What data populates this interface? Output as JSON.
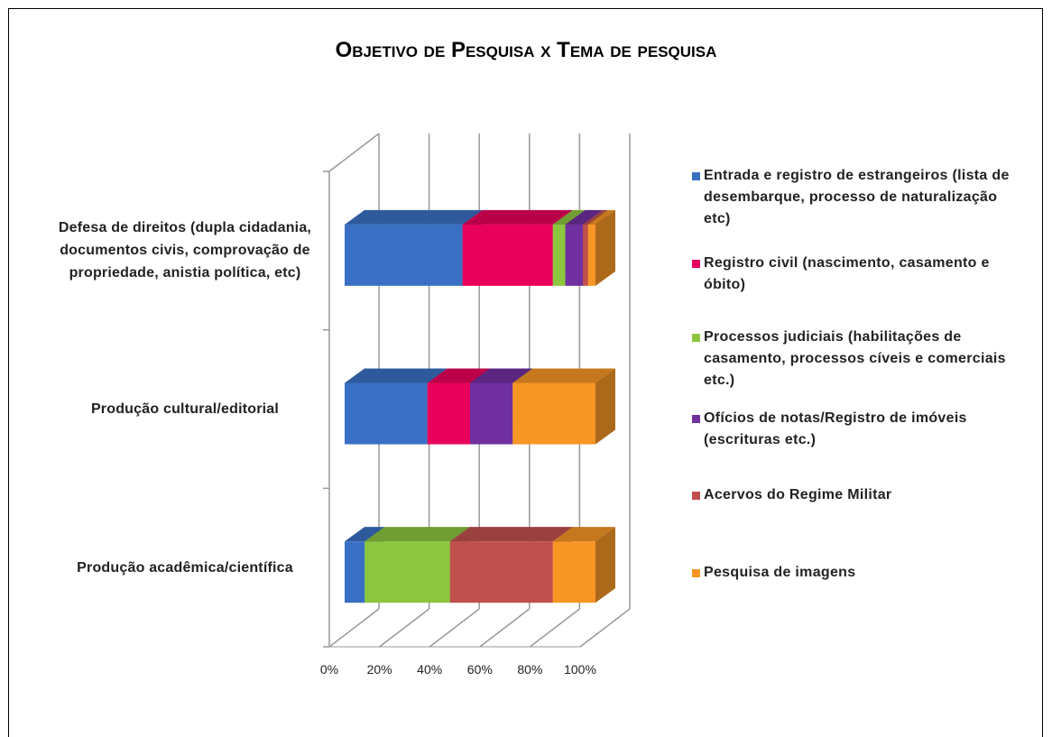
{
  "chart_data": {
    "type": "bar3d_stacked_horizontal",
    "title": "Objetivo de Pesquisa x Tema de pesquisa",
    "categories": [
      "Defesa de direitos (dupla cidadania, documentos civis, comprovação de propriedade, anistia política, etc)",
      "Produção cultural/editorial",
      "Produção acadêmica/científica"
    ],
    "series": [
      {
        "name": "Entrada e registro de estrangeiros (lista de desembarque, processo de naturalização etc)",
        "color": "#3a70c4",
        "values": [
          47,
          33,
          8
        ]
      },
      {
        "name": "Registro civil (nascimento, casamento e óbito)",
        "color": "#e8005a",
        "values": [
          36,
          17,
          0
        ]
      },
      {
        "name": "Processos judiciais (habilitações de casamento, processos cíveis e comerciais etc.)",
        "color": "#8cc63f",
        "values": [
          5,
          0,
          34
        ]
      },
      {
        "name": "Ofícios de notas/Registro de imóveis (escrituras etc.)",
        "color": "#7030a0",
        "values": [
          7,
          17,
          0
        ]
      },
      {
        "name": "Acervos do Regime Militar",
        "color": "#c0504d",
        "values": [
          2,
          0,
          41
        ]
      },
      {
        "name": "Pesquisa de imagens",
        "color": "#f79625",
        "values": [
          3,
          33,
          17
        ]
      }
    ],
    "xlim": [
      0,
      100
    ],
    "xticks": [
      {
        "value": 0,
        "label": "0%"
      },
      {
        "value": 20,
        "label": "20%"
      },
      {
        "value": 40,
        "label": "40%"
      },
      {
        "value": 60,
        "label": "60%"
      },
      {
        "value": 80,
        "label": "80%"
      },
      {
        "value": 100,
        "label": "100%"
      }
    ],
    "legend": "right",
    "grid": true
  }
}
